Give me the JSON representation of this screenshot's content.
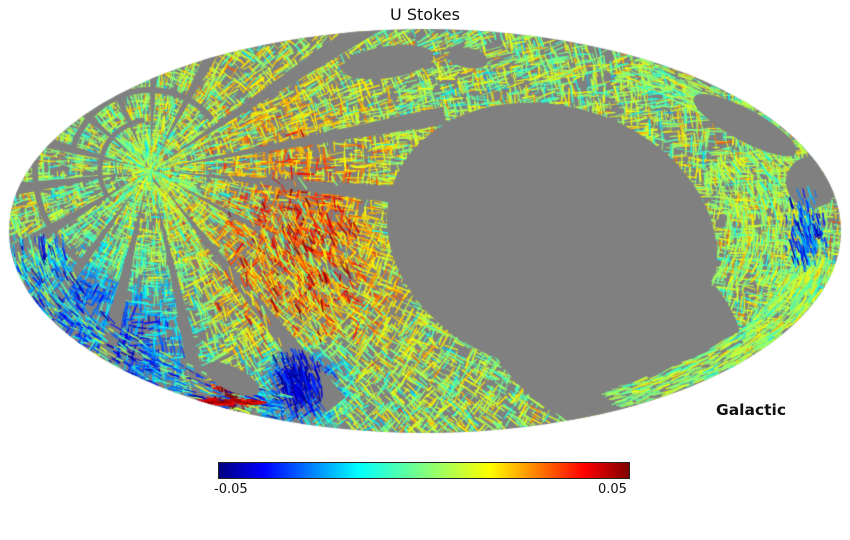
{
  "chart_data": {
    "type": "heatmap",
    "projection": "mollweide",
    "title": "U Stokes",
    "coordinate_label": "Galactic",
    "colormap": "jet",
    "colorbar": {
      "min": -0.05,
      "max": 0.05,
      "tick_labels": [
        "-0.05",
        "0.05"
      ],
      "gradient_stops": [
        "#00007f 0%",
        "#0000ff 11%",
        "#00ffff 34%",
        "#7fff7f 50%",
        "#ffff00 66%",
        "#ff0000 89%",
        "#7f0000 100%"
      ]
    },
    "unobserved_color": "#808080",
    "background_color": "#ffffff",
    "notes": "Partial-sky scan-pattern map; values mostly near zero (green/cyan) with localized positive (orange/red) and negative (blue) streaks; large unobserved gray region right of center"
  }
}
